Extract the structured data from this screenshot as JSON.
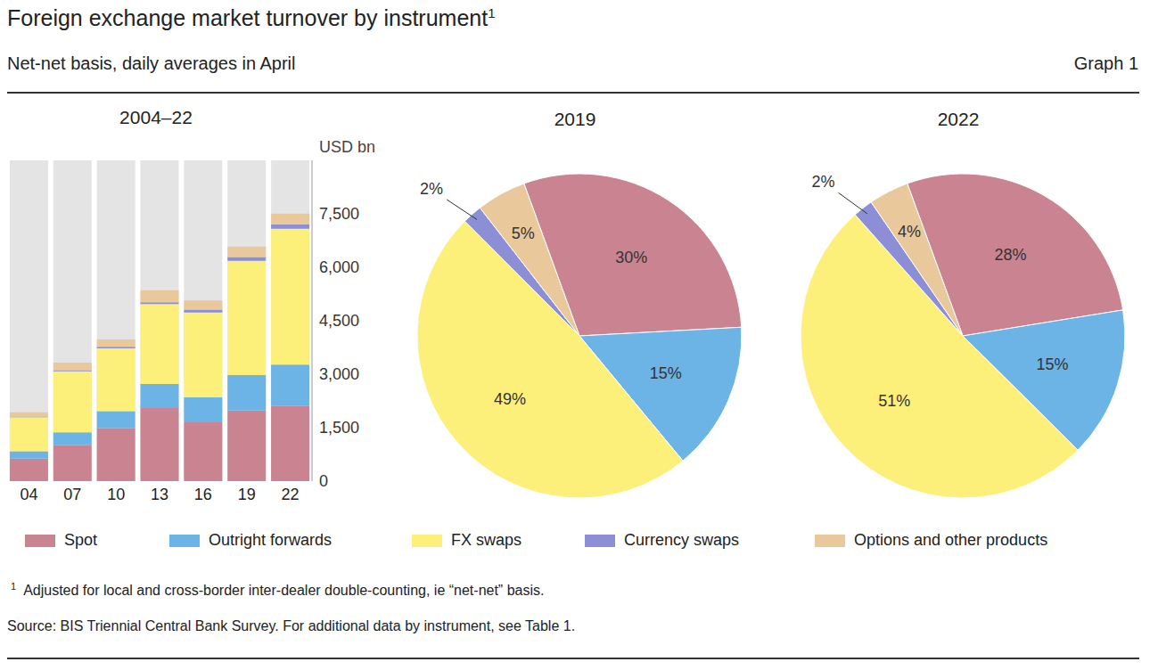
{
  "title": "Foreign exchange market turnover by instrument",
  "title_note": "1",
  "subtitle": "Net-net basis, daily averages in April",
  "graph_label": "Graph 1",
  "footnote": {
    "mark": "1",
    "text": "Adjusted for local and cross-border inter-dealer double-counting, ie “net-net” basis."
  },
  "source": "Source: BIS Triennial Central Bank Survey. For additional data by instrument, see Table 1.",
  "chart_data": [
    {
      "type": "bar",
      "title": "2004–22",
      "stacked": true,
      "legend": "bottom",
      "y_label": "USD bn",
      "categories": [
        "04",
        "07",
        "10",
        "13",
        "16",
        "19",
        "22"
      ],
      "ylim": [
        0,
        9000
      ],
      "yticks": [
        0,
        {
          "value": 1500,
          "label": "1,500"
        },
        {
          "value": 3000,
          "label": "3,000"
        },
        {
          "value": 4500,
          "label": "4,500"
        },
        {
          "value": 6000,
          "label": "6,000"
        },
        {
          "value": 7500,
          "label": "7,500"
        }
      ],
      "series": [
        {
          "name": "Spot",
          "color": "#c98391",
          "values": [
            631,
            1005,
            1489,
            2047,
            1652,
            1979,
            2107
          ]
        },
        {
          "name": "Outright forwards",
          "color": "#6cb4e6",
          "values": [
            209,
            362,
            475,
            679,
            700,
            999,
            1163
          ]
        },
        {
          "name": "FX swaps",
          "color": "#fdf07a",
          "values": [
            954,
            1714,
            1759,
            2240,
            2378,
            3202,
            3810
          ]
        },
        {
          "name": "Currency swaps",
          "color": "#8c8fd6",
          "values": [
            21,
            31,
            43,
            54,
            82,
            108,
            124
          ]
        },
        {
          "name": "Options and other products",
          "color": "#e9c99b",
          "values": [
            119,
            212,
            207,
            337,
            254,
            294,
            304
          ]
        }
      ]
    },
    {
      "type": "pie",
      "title": "2019",
      "data_labels": true,
      "categories": [
        "Spot",
        "Outright forwards",
        "FX swaps",
        "Currency swaps",
        "Options and other products"
      ],
      "values": [
        30,
        15,
        49,
        2,
        5
      ],
      "value_labels": [
        "30%",
        "15%",
        "49%",
        "2%",
        "5%"
      ],
      "colors": [
        "#c98391",
        "#6cb4e6",
        "#fdf07a",
        "#8c8fd6",
        "#e9c99b"
      ]
    },
    {
      "type": "pie",
      "title": "2022",
      "data_labels": true,
      "categories": [
        "Spot",
        "Outright forwards",
        "FX swaps",
        "Currency swaps",
        "Options and other products"
      ],
      "values": [
        28,
        15,
        51,
        2,
        4
      ],
      "value_labels": [
        "28%",
        "15%",
        "51%",
        "2%",
        "4%"
      ],
      "colors": [
        "#c98391",
        "#6cb4e6",
        "#fdf07a",
        "#8c8fd6",
        "#e9c99b"
      ]
    }
  ]
}
